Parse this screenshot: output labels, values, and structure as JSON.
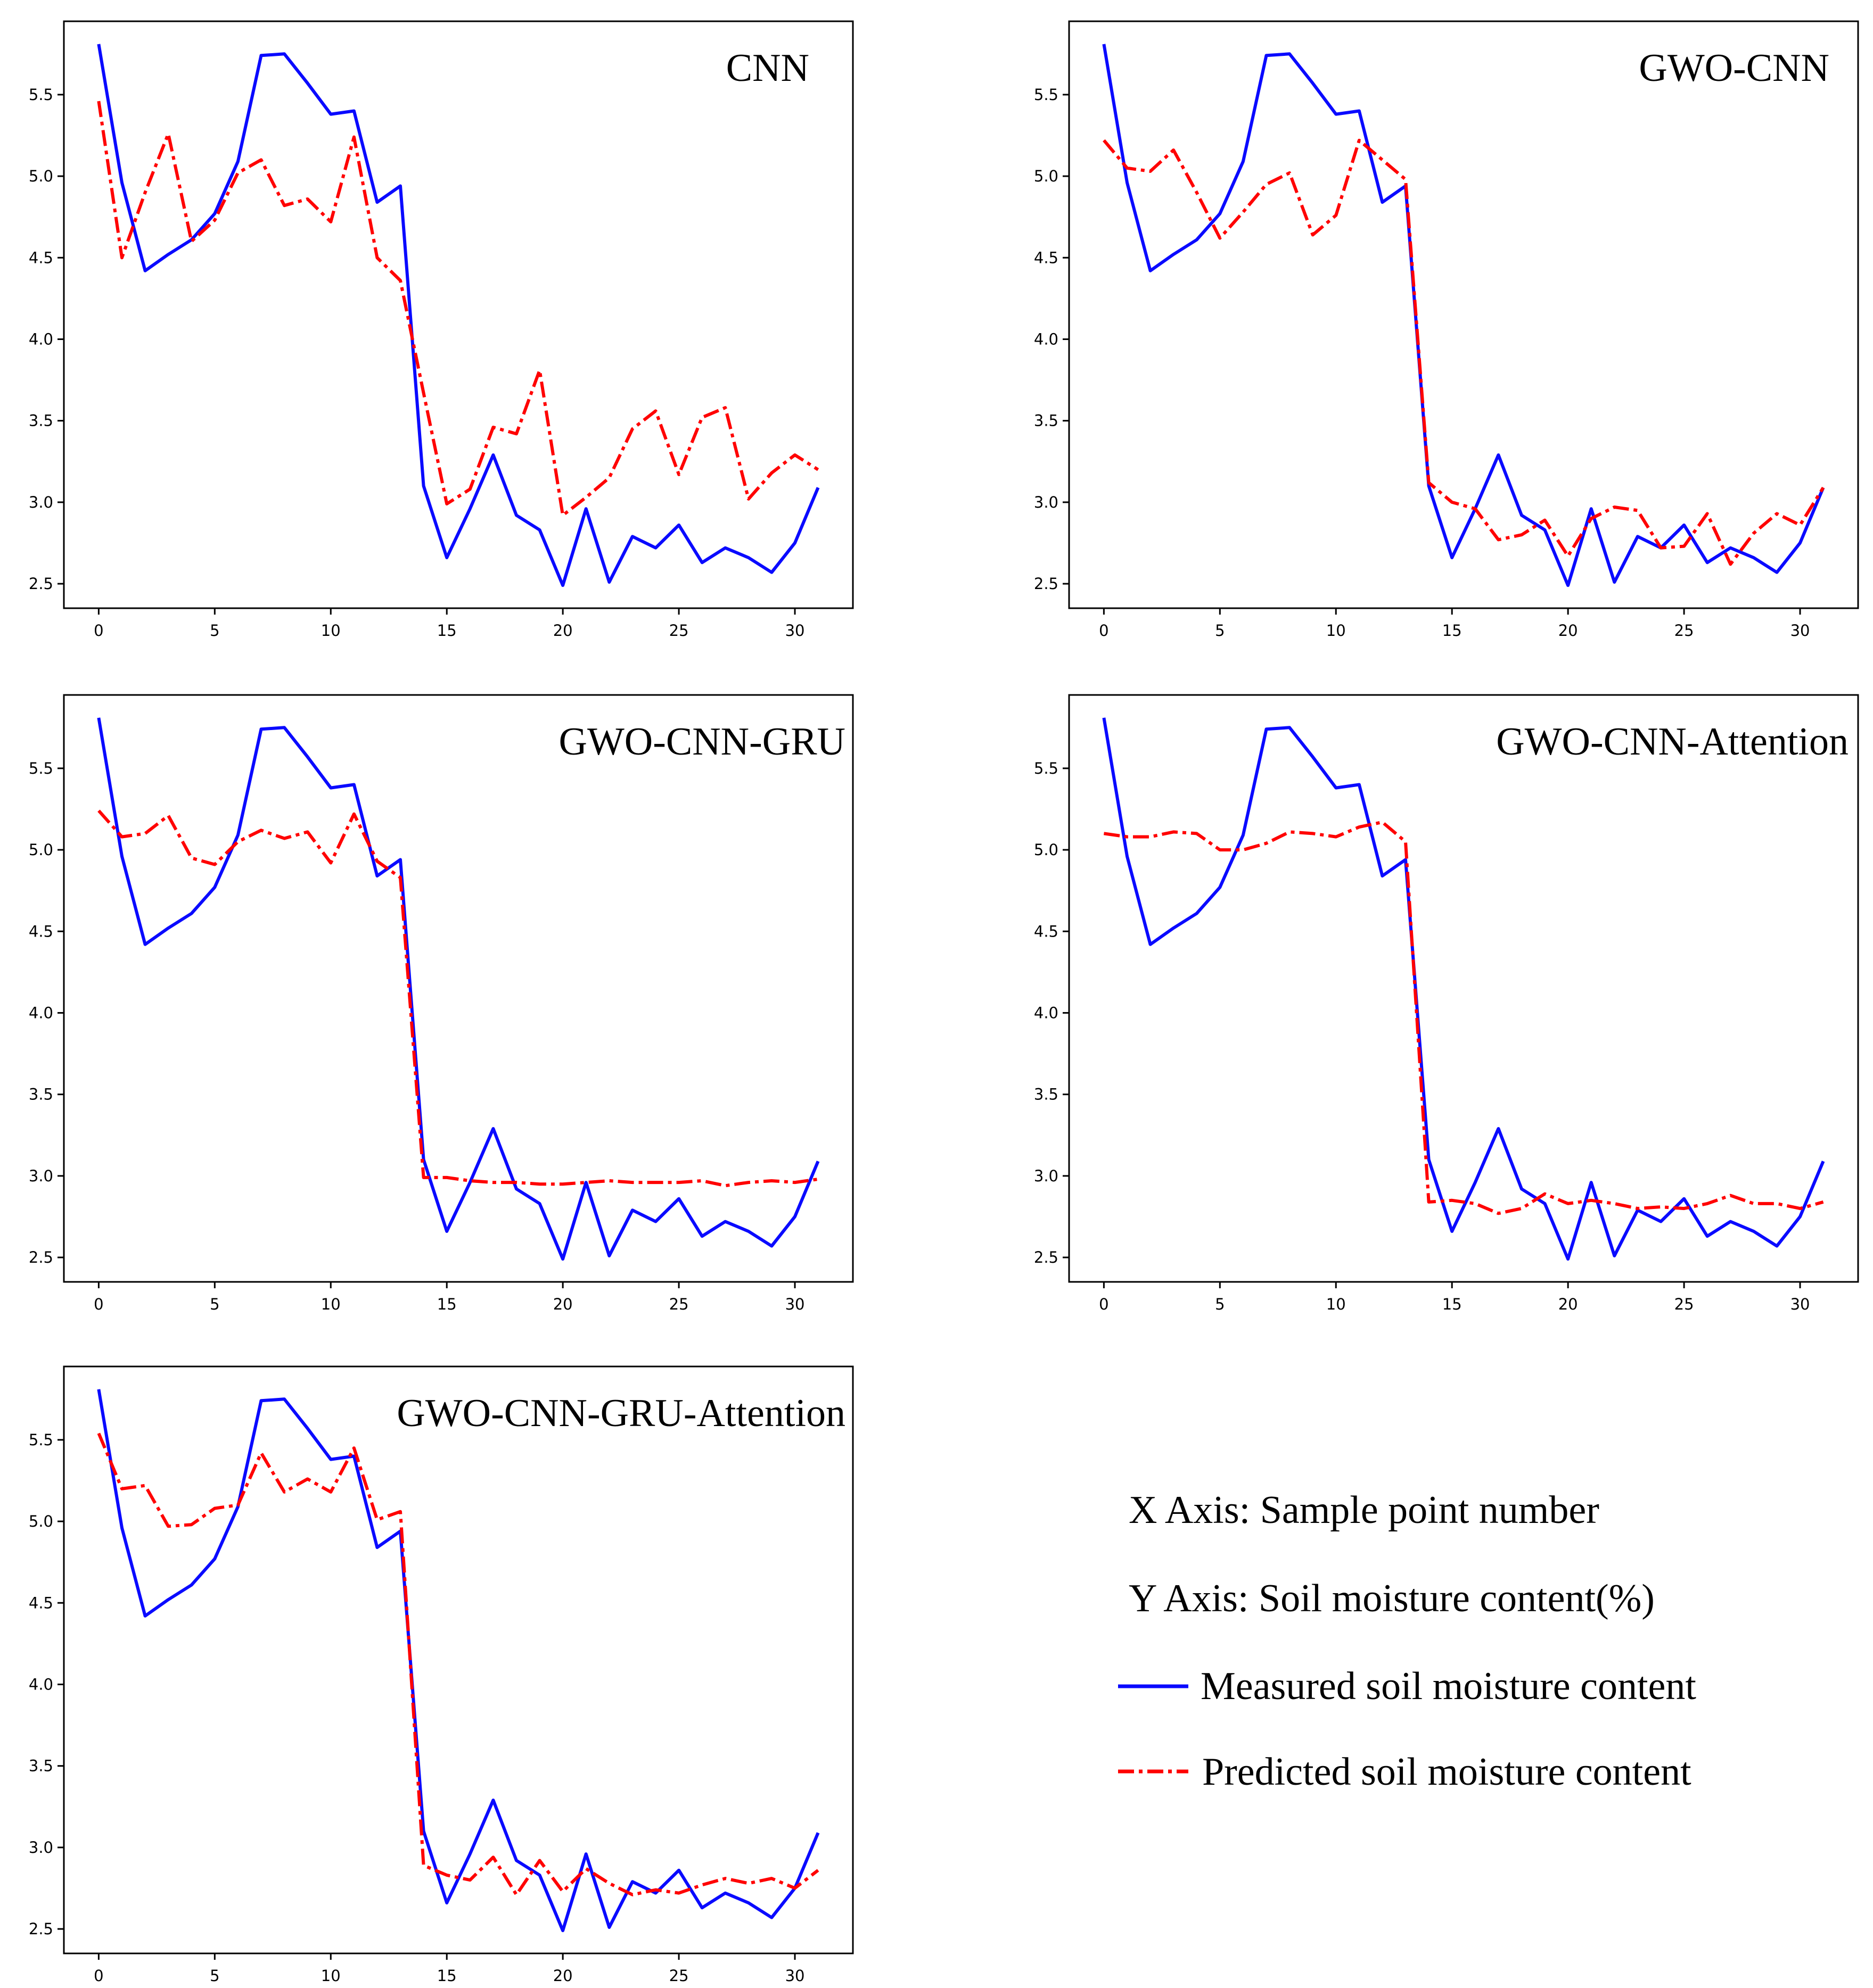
{
  "colors": {
    "measured": "#0a0aff",
    "predicted": "#ff0000",
    "frame": "#000000"
  },
  "legend": {
    "x_axis_text": "X Axis: Sample point number",
    "y_axis_text": "Y Axis: Soil moisture content(%)",
    "measured_label": "Measured soil moisture content",
    "predicted_label": "Predicted soil moisture content"
  },
  "chart_data": [
    {
      "type": "line",
      "title": "CNN",
      "xlim": [
        -1.5,
        32.5
      ],
      "ylim": [
        2.35,
        5.95
      ],
      "xticks": [
        0,
        5,
        10,
        15,
        20,
        25,
        30
      ],
      "yticks": [
        2.5,
        3.0,
        3.5,
        4.0,
        4.5,
        5.0,
        5.5
      ],
      "x": [
        0,
        1,
        2,
        3,
        4,
        5,
        6,
        7,
        8,
        9,
        10,
        11,
        12,
        13,
        14,
        15,
        16,
        17,
        18,
        19,
        20,
        21,
        22,
        23,
        24,
        25,
        26,
        27,
        28,
        29,
        30,
        31
      ],
      "series": [
        {
          "name": "Measured soil moisture content",
          "values": [
            5.81,
            4.96,
            4.42,
            4.52,
            4.61,
            4.77,
            5.09,
            5.74,
            5.75,
            5.57,
            5.38,
            5.4,
            4.84,
            4.94,
            3.1,
            2.66,
            2.96,
            3.29,
            2.92,
            2.83,
            2.49,
            2.96,
            2.51,
            2.79,
            2.72,
            2.86,
            2.63,
            2.72,
            2.66,
            2.57,
            2.75,
            3.09
          ]
        },
        {
          "name": "Predicted soil moisture content",
          "values": [
            5.46,
            4.5,
            4.9,
            5.26,
            4.6,
            4.73,
            5.02,
            5.1,
            4.82,
            4.86,
            4.72,
            5.24,
            4.5,
            4.36,
            3.67,
            2.99,
            3.08,
            3.46,
            3.42,
            3.81,
            2.92,
            3.03,
            3.15,
            3.45,
            3.56,
            3.17,
            3.52,
            3.58,
            3.02,
            3.18,
            3.29,
            3.2
          ]
        }
      ]
    },
    {
      "type": "line",
      "title": "GWO-CNN",
      "xlim": [
        -1.5,
        32.5
      ],
      "ylim": [
        2.35,
        5.95
      ],
      "xticks": [
        0,
        5,
        10,
        15,
        20,
        25,
        30
      ],
      "yticks": [
        2.5,
        3.0,
        3.5,
        4.0,
        4.5,
        5.0,
        5.5
      ],
      "x": [
        0,
        1,
        2,
        3,
        4,
        5,
        6,
        7,
        8,
        9,
        10,
        11,
        12,
        13,
        14,
        15,
        16,
        17,
        18,
        19,
        20,
        21,
        22,
        23,
        24,
        25,
        26,
        27,
        28,
        29,
        30,
        31
      ],
      "series": [
        {
          "name": "Measured soil moisture content",
          "values": [
            5.81,
            4.96,
            4.42,
            4.52,
            4.61,
            4.77,
            5.09,
            5.74,
            5.75,
            5.57,
            5.38,
            5.4,
            4.84,
            4.94,
            3.1,
            2.66,
            2.96,
            3.29,
            2.92,
            2.83,
            2.49,
            2.96,
            2.51,
            2.79,
            2.72,
            2.86,
            2.63,
            2.72,
            2.66,
            2.57,
            2.75,
            3.09
          ]
        },
        {
          "name": "Predicted soil moisture content",
          "values": [
            5.22,
            5.05,
            5.03,
            5.16,
            4.9,
            4.62,
            4.78,
            4.95,
            5.02,
            4.64,
            4.76,
            5.22,
            5.1,
            4.98,
            3.12,
            3.0,
            2.96,
            2.77,
            2.8,
            2.89,
            2.67,
            2.9,
            2.97,
            2.95,
            2.72,
            2.73,
            2.93,
            2.62,
            2.81,
            2.93,
            2.86,
            3.09
          ]
        }
      ]
    },
    {
      "type": "line",
      "title": "GWO-CNN-GRU",
      "xlim": [
        -1.5,
        32.5
      ],
      "ylim": [
        2.35,
        5.95
      ],
      "xticks": [
        0,
        5,
        10,
        15,
        20,
        25,
        30
      ],
      "yticks": [
        2.5,
        3.0,
        3.5,
        4.0,
        4.5,
        5.0,
        5.5
      ],
      "x": [
        0,
        1,
        2,
        3,
        4,
        5,
        6,
        7,
        8,
        9,
        10,
        11,
        12,
        13,
        14,
        15,
        16,
        17,
        18,
        19,
        20,
        21,
        22,
        23,
        24,
        25,
        26,
        27,
        28,
        29,
        30,
        31
      ],
      "series": [
        {
          "name": "Measured soil moisture content",
          "values": [
            5.81,
            4.96,
            4.42,
            4.52,
            4.61,
            4.77,
            5.09,
            5.74,
            5.75,
            5.57,
            5.38,
            5.4,
            4.84,
            4.94,
            3.1,
            2.66,
            2.96,
            3.29,
            2.92,
            2.83,
            2.49,
            2.96,
            2.51,
            2.79,
            2.72,
            2.86,
            2.63,
            2.72,
            2.66,
            2.57,
            2.75,
            3.09
          ]
        },
        {
          "name": "Predicted soil moisture content",
          "values": [
            5.24,
            5.08,
            5.1,
            5.21,
            4.95,
            4.91,
            5.05,
            5.12,
            5.07,
            5.11,
            4.92,
            5.22,
            4.93,
            4.83,
            2.99,
            2.99,
            2.97,
            2.96,
            2.96,
            2.95,
            2.95,
            2.96,
            2.97,
            2.96,
            2.96,
            2.96,
            2.97,
            2.94,
            2.96,
            2.97,
            2.96,
            2.98
          ]
        }
      ]
    },
    {
      "type": "line",
      "title": "GWO-CNN-Attention",
      "xlim": [
        -1.5,
        32.5
      ],
      "ylim": [
        2.35,
        5.95
      ],
      "xticks": [
        0,
        5,
        10,
        15,
        20,
        25,
        30
      ],
      "yticks": [
        2.5,
        3.0,
        3.5,
        4.0,
        4.5,
        5.0,
        5.5
      ],
      "x": [
        0,
        1,
        2,
        3,
        4,
        5,
        6,
        7,
        8,
        9,
        10,
        11,
        12,
        13,
        14,
        15,
        16,
        17,
        18,
        19,
        20,
        21,
        22,
        23,
        24,
        25,
        26,
        27,
        28,
        29,
        30,
        31
      ],
      "series": [
        {
          "name": "Measured soil moisture content",
          "values": [
            5.81,
            4.96,
            4.42,
            4.52,
            4.61,
            4.77,
            5.09,
            5.74,
            5.75,
            5.57,
            5.38,
            5.4,
            4.84,
            4.94,
            3.1,
            2.66,
            2.96,
            3.29,
            2.92,
            2.83,
            2.49,
            2.96,
            2.51,
            2.79,
            2.72,
            2.86,
            2.63,
            2.72,
            2.66,
            2.57,
            2.75,
            3.09
          ]
        },
        {
          "name": "Predicted soil moisture content",
          "values": [
            5.1,
            5.08,
            5.08,
            5.11,
            5.1,
            5.0,
            5.0,
            5.04,
            5.11,
            5.1,
            5.08,
            5.14,
            5.17,
            5.05,
            2.84,
            2.85,
            2.83,
            2.77,
            2.8,
            2.89,
            2.83,
            2.85,
            2.83,
            2.8,
            2.81,
            2.8,
            2.83,
            2.88,
            2.83,
            2.83,
            2.8,
            2.84
          ]
        }
      ]
    },
    {
      "type": "line",
      "title": "GWO-CNN-GRU-Attention",
      "xlim": [
        -1.5,
        32.5
      ],
      "ylim": [
        2.35,
        5.95
      ],
      "xticks": [
        0,
        5,
        10,
        15,
        20,
        25,
        30
      ],
      "yticks": [
        2.5,
        3.0,
        3.5,
        4.0,
        4.5,
        5.0,
        5.5
      ],
      "x": [
        0,
        1,
        2,
        3,
        4,
        5,
        6,
        7,
        8,
        9,
        10,
        11,
        12,
        13,
        14,
        15,
        16,
        17,
        18,
        19,
        20,
        21,
        22,
        23,
        24,
        25,
        26,
        27,
        28,
        29,
        30,
        31
      ],
      "series": [
        {
          "name": "Measured soil moisture content",
          "values": [
            5.81,
            4.96,
            4.42,
            4.52,
            4.61,
            4.77,
            5.09,
            5.74,
            5.75,
            5.57,
            5.38,
            5.4,
            4.84,
            4.94,
            3.1,
            2.66,
            2.96,
            3.29,
            2.92,
            2.83,
            2.49,
            2.96,
            2.51,
            2.79,
            2.72,
            2.86,
            2.63,
            2.72,
            2.66,
            2.57,
            2.75,
            3.09
          ]
        },
        {
          "name": "Predicted soil moisture content",
          "values": [
            5.54,
            5.2,
            5.22,
            4.97,
            4.98,
            5.08,
            5.1,
            5.42,
            5.18,
            5.26,
            5.18,
            5.45,
            5.01,
            5.06,
            2.89,
            2.83,
            2.8,
            2.94,
            2.71,
            2.92,
            2.73,
            2.87,
            2.78,
            2.71,
            2.74,
            2.72,
            2.77,
            2.81,
            2.78,
            2.81,
            2.75,
            2.86
          ]
        }
      ]
    }
  ]
}
